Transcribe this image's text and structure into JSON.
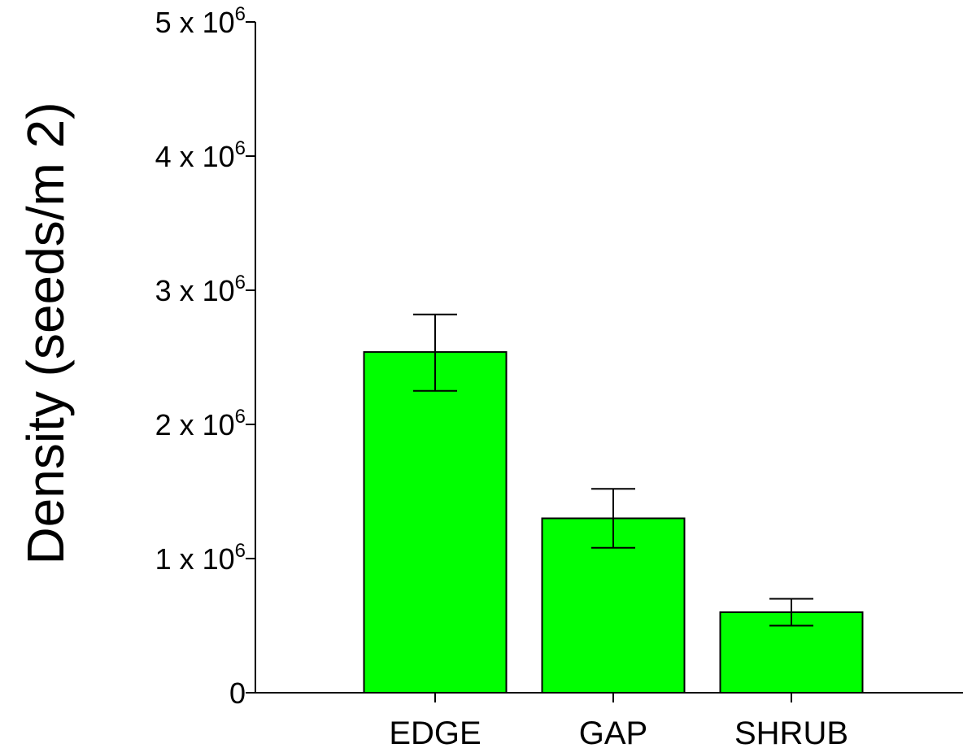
{
  "chart_data": {
    "type": "bar",
    "categories": [
      "EDGE",
      "GAP",
      "SHRUB"
    ],
    "values": [
      2540000,
      1300000,
      600000
    ],
    "error_bars": [
      {
        "low": 2250000,
        "high": 2820000
      },
      {
        "low": 1080000,
        "high": 1520000
      },
      {
        "low": 500000,
        "high": 700000
      }
    ],
    "title": "",
    "xlabel": "",
    "ylabel": "Density (seeds/m 2)",
    "ylim": [
      0,
      5000000
    ],
    "yticks": [
      {
        "value": 0,
        "mantissa": "0",
        "base": "",
        "exp": ""
      },
      {
        "value": 1000000,
        "mantissa": "1 x 10",
        "base": "",
        "exp": "6"
      },
      {
        "value": 2000000,
        "mantissa": "2 x 10",
        "base": "",
        "exp": "6"
      },
      {
        "value": 3000000,
        "mantissa": "3 x 10",
        "base": "",
        "exp": "6"
      },
      {
        "value": 4000000,
        "mantissa": "4 x 10",
        "base": "",
        "exp": "6"
      },
      {
        "value": 5000000,
        "mantissa": "5 x 10",
        "base": "",
        "exp": "6"
      }
    ],
    "grid": false,
    "bar_color": "#00ff00",
    "bar_edge_color": "#000000",
    "axis_color": "#000000"
  }
}
